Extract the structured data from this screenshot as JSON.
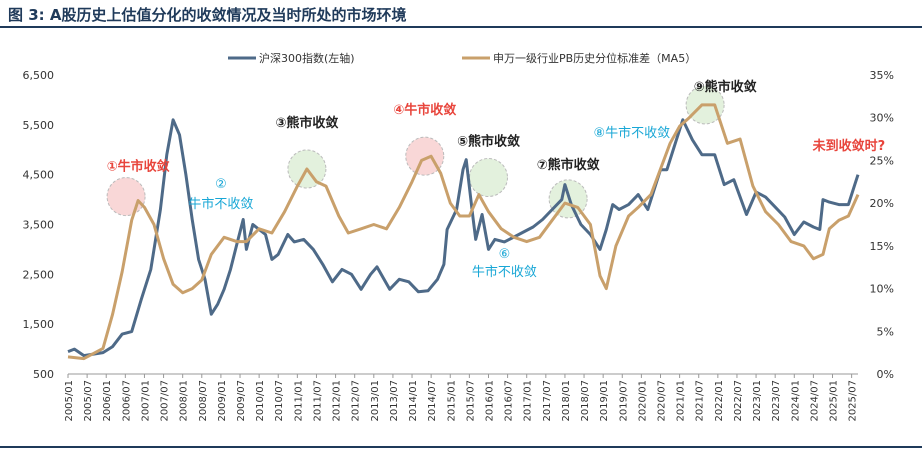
{
  "title": "图 3:  A股历史上估值分化的收敛情况及当时所处的市场环境",
  "colors": {
    "csi300": "#4e6a88",
    "pb_spread": "#c9a06b",
    "title": "#1f3a5a",
    "bull": "#e8453c",
    "bear": "#222222",
    "notconverge": "#19a7d6"
  },
  "chart_data": {
    "type": "line",
    "x_start": "2005/01",
    "x_end": "2025/09",
    "x_tick_labels": [
      "2005/01",
      "2005/07",
      "2006/01",
      "2006/07",
      "2007/01",
      "2007/07",
      "2008/01",
      "2008/07",
      "2009/01",
      "2009/07",
      "2010/01",
      "2010/07",
      "2011/01",
      "2011/07",
      "2012/01",
      "2012/07",
      "2013/01",
      "2013/07",
      "2014/01",
      "2014/07",
      "2015/01",
      "2015/07",
      "2016/01",
      "2016/07",
      "2017/01",
      "2017/07",
      "2018/01",
      "2018/07",
      "2019/01",
      "2019/07",
      "2020/01",
      "2020/07",
      "2021/01",
      "2021/07",
      "2022/01",
      "2022/07",
      "2023/01",
      "2023/07",
      "2024/01",
      "2024/07",
      "2025/01",
      "2025/07"
    ],
    "y_left": {
      "min": 500,
      "max": 6500,
      "ticks": [
        "6,500",
        "5,500",
        "4,500",
        "3,500",
        "2,500",
        "1,500",
        "500"
      ]
    },
    "y_right": {
      "min": 0,
      "max": 35,
      "ticks": [
        "35%",
        "30%",
        "25%",
        "20%",
        "15%",
        "10%",
        "5%",
        "0%"
      ]
    },
    "legend": {
      "position": "top",
      "items": [
        "沪深300指数(左轴)",
        "申万一级行业PB历史分位标准差（MA5）"
      ]
    },
    "series": [
      {
        "name": "沪深300指数(左轴)",
        "axis": "left",
        "points": [
          [
            "2005/01",
            950
          ],
          [
            "2005/03",
            1000
          ],
          [
            "2005/06",
            870
          ],
          [
            "2005/09",
            900
          ],
          [
            "2005/12",
            930
          ],
          [
            "2006/03",
            1050
          ],
          [
            "2006/06",
            1300
          ],
          [
            "2006/09",
            1350
          ],
          [
            "2006/12",
            2000
          ],
          [
            "2007/03",
            2600
          ],
          [
            "2007/06",
            3800
          ],
          [
            "2007/08",
            4900
          ],
          [
            "2007/10",
            5600
          ],
          [
            "2007/12",
            5300
          ],
          [
            "2008/02",
            4500
          ],
          [
            "2008/04",
            3600
          ],
          [
            "2008/06",
            2800
          ],
          [
            "2008/08",
            2400
          ],
          [
            "2008/10",
            1700
          ],
          [
            "2008/12",
            1900
          ],
          [
            "2009/02",
            2200
          ],
          [
            "2009/04",
            2600
          ],
          [
            "2009/06",
            3100
          ],
          [
            "2009/08",
            3600
          ],
          [
            "2009/09",
            3000
          ],
          [
            "2009/11",
            3500
          ],
          [
            "2010/01",
            3400
          ],
          [
            "2010/03",
            3300
          ],
          [
            "2010/05",
            2800
          ],
          [
            "2010/07",
            2900
          ],
          [
            "2010/10",
            3300
          ],
          [
            "2010/12",
            3150
          ],
          [
            "2011/03",
            3200
          ],
          [
            "2011/06",
            3000
          ],
          [
            "2011/09",
            2700
          ],
          [
            "2011/12",
            2350
          ],
          [
            "2012/03",
            2600
          ],
          [
            "2012/06",
            2500
          ],
          [
            "2012/09",
            2200
          ],
          [
            "2012/12",
            2500
          ],
          [
            "2013/02",
            2650
          ],
          [
            "2013/06",
            2200
          ],
          [
            "2013/09",
            2400
          ],
          [
            "2013/12",
            2350
          ],
          [
            "2014/03",
            2150
          ],
          [
            "2014/06",
            2170
          ],
          [
            "2014/09",
            2400
          ],
          [
            "2014/11",
            2700
          ],
          [
            "2014/12",
            3400
          ],
          [
            "2015/03",
            3800
          ],
          [
            "2015/05",
            4600
          ],
          [
            "2015/06",
            4800
          ],
          [
            "2015/08",
            3700
          ],
          [
            "2015/09",
            3200
          ],
          [
            "2015/11",
            3700
          ],
          [
            "2016/01",
            3000
          ],
          [
            "2016/03",
            3200
          ],
          [
            "2016/06",
            3150
          ],
          [
            "2016/09",
            3250
          ],
          [
            "2016/12",
            3350
          ],
          [
            "2017/03",
            3450
          ],
          [
            "2017/06",
            3600
          ],
          [
            "2017/09",
            3800
          ],
          [
            "2017/12",
            4000
          ],
          [
            "2018/01",
            4300
          ],
          [
            "2018/03",
            3900
          ],
          [
            "2018/06",
            3500
          ],
          [
            "2018/09",
            3300
          ],
          [
            "2018/12",
            3000
          ],
          [
            "2019/02",
            3400
          ],
          [
            "2019/04",
            3900
          ],
          [
            "2019/06",
            3800
          ],
          [
            "2019/09",
            3900
          ],
          [
            "2019/12",
            4100
          ],
          [
            "2020/03",
            3800
          ],
          [
            "2020/07",
            4600
          ],
          [
            "2020/09",
            4600
          ],
          [
            "2020/12",
            5200
          ],
          [
            "2021/02",
            5600
          ],
          [
            "2021/05",
            5200
          ],
          [
            "2021/08",
            4900
          ],
          [
            "2021/12",
            4900
          ],
          [
            "2022/03",
            4300
          ],
          [
            "2022/06",
            4400
          ],
          [
            "2022/10",
            3700
          ],
          [
            "2023/01",
            4150
          ],
          [
            "2023/04",
            4050
          ],
          [
            "2023/07",
            3850
          ],
          [
            "2023/10",
            3650
          ],
          [
            "2024/01",
            3300
          ],
          [
            "2024/04",
            3550
          ],
          [
            "2024/07",
            3450
          ],
          [
            "2024/09",
            3400
          ],
          [
            "2024/10",
            4000
          ],
          [
            "2024/12",
            3950
          ],
          [
            "2025/03",
            3900
          ],
          [
            "2025/06",
            3900
          ],
          [
            "2025/08",
            4300
          ],
          [
            "2025/09",
            4500
          ]
        ]
      },
      {
        "name": "申万一级行业PB历史分位标准差（MA5）",
        "axis": "right",
        "points": [
          [
            "2005/01",
            2.0
          ],
          [
            "2005/06",
            1.8
          ],
          [
            "2005/12",
            3.0
          ],
          [
            "2006/03",
            7.0
          ],
          [
            "2006/06",
            12.0
          ],
          [
            "2006/09",
            18.0
          ],
          [
            "2006/11",
            20.3
          ],
          [
            "2007/01",
            19.5
          ],
          [
            "2007/04",
            17.5
          ],
          [
            "2007/07",
            13.5
          ],
          [
            "2007/10",
            10.5
          ],
          [
            "2008/01",
            9.5
          ],
          [
            "2008/04",
            10.0
          ],
          [
            "2008/07",
            11.0
          ],
          [
            "2008/10",
            14.0
          ],
          [
            "2009/02",
            16.0
          ],
          [
            "2009/06",
            15.5
          ],
          [
            "2009/09",
            15.5
          ],
          [
            "2010/01",
            17.0
          ],
          [
            "2010/05",
            16.5
          ],
          [
            "2010/09",
            19.0
          ],
          [
            "2011/01",
            22.0
          ],
          [
            "2011/04",
            24.0
          ],
          [
            "2011/07",
            22.5
          ],
          [
            "2011/10",
            22.0
          ],
          [
            "2012/02",
            18.5
          ],
          [
            "2012/05",
            16.5
          ],
          [
            "2012/09",
            17.0
          ],
          [
            "2013/01",
            17.5
          ],
          [
            "2013/05",
            17.0
          ],
          [
            "2013/09",
            19.5
          ],
          [
            "2014/01",
            22.5
          ],
          [
            "2014/04",
            25.0
          ],
          [
            "2014/07",
            25.5
          ],
          [
            "2014/10",
            23.5
          ],
          [
            "2015/01",
            20.0
          ],
          [
            "2015/04",
            18.5
          ],
          [
            "2015/07",
            18.5
          ],
          [
            "2015/10",
            21.0
          ],
          [
            "2016/01",
            19.0
          ],
          [
            "2016/05",
            17.0
          ],
          [
            "2016/09",
            16.0
          ],
          [
            "2017/01",
            15.5
          ],
          [
            "2017/05",
            16.0
          ],
          [
            "2017/09",
            18.0
          ],
          [
            "2018/01",
            20.0
          ],
          [
            "2018/05",
            19.5
          ],
          [
            "2018/09",
            17.5
          ],
          [
            "2018/12",
            11.5
          ],
          [
            "2019/02",
            10.0
          ],
          [
            "2019/05",
            15.0
          ],
          [
            "2019/09",
            18.5
          ],
          [
            "2019/12",
            19.5
          ],
          [
            "2020/04",
            21.0
          ],
          [
            "2020/07",
            24.0
          ],
          [
            "2020/10",
            27.0
          ],
          [
            "2021/01",
            29.0
          ],
          [
            "2021/04",
            30.0
          ],
          [
            "2021/08",
            31.5
          ],
          [
            "2021/12",
            31.5
          ],
          [
            "2022/04",
            27.0
          ],
          [
            "2022/08",
            27.5
          ],
          [
            "2022/12",
            22.0
          ],
          [
            "2023/04",
            19.0
          ],
          [
            "2023/08",
            17.5
          ],
          [
            "2023/12",
            15.5
          ],
          [
            "2024/04",
            15.0
          ],
          [
            "2024/07",
            13.5
          ],
          [
            "2024/10",
            14.0
          ],
          [
            "2024/12",
            17.0
          ],
          [
            "2025/03",
            18.0
          ],
          [
            "2025/06",
            18.5
          ],
          [
            "2025/09",
            21.0
          ]
        ]
      }
    ],
    "annotations": [
      {
        "text": "①牛市收敛",
        "type": "bull",
        "date": "2006/11",
        "value": 20.3
      },
      {
        "text": "②",
        "text2": "牛市不收敛",
        "type": "notconverge",
        "date": "2009/01"
      },
      {
        "text": "③熊市收敛",
        "type": "bear",
        "date": "2011/04",
        "value": 24.0
      },
      {
        "text": "④牛市收敛",
        "type": "bull",
        "date": "2014/05",
        "value": 25.5
      },
      {
        "text": "⑤熊市收敛",
        "type": "bear",
        "date": "2016/01",
        "value": 23.0
      },
      {
        "text": "⑥",
        "text2": "牛市不收敛",
        "type": "notconverge",
        "date": "2016/06"
      },
      {
        "text": "⑦熊市收敛",
        "type": "bear",
        "date": "2018/02",
        "value": 20.5
      },
      {
        "text": "⑧牛市不收敛",
        "type": "notconverge",
        "date": "2019/10"
      },
      {
        "text": "⑨熊市收敛",
        "type": "bear",
        "date": "2021/09",
        "value": 31.5
      },
      {
        "text": "未到收敛时?",
        "type": "bull",
        "date": "2025/03"
      }
    ]
  }
}
